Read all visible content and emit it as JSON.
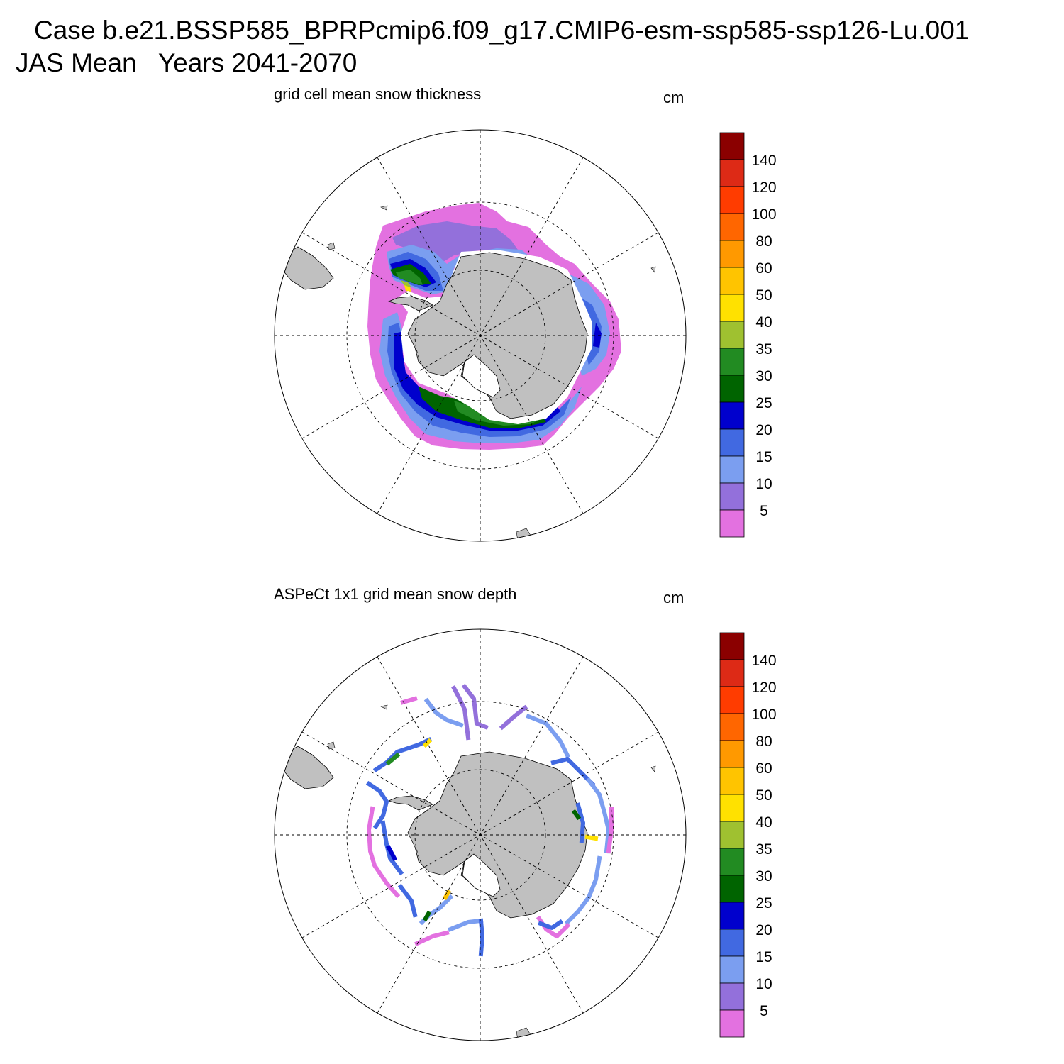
{
  "header": {
    "case_line": "Case b.e21.BSSP585_BPRPcmip6.f09_g17.CMIP6-esm-ssp585-ssp126-Lu.001",
    "season_line": "JAS Mean   Years 2041-2070"
  },
  "colorbar": {
    "labels": [
      "140",
      "120",
      "100",
      "80",
      "60",
      "50",
      "40",
      "35",
      "30",
      "25",
      "20",
      "15",
      "10",
      "5"
    ],
    "colors": [
      "#8b0000",
      "#dd2a16",
      "#ff3c00",
      "#ff6600",
      "#ff9900",
      "#ffc400",
      "#ffe100",
      "#9fc130",
      "#228b22",
      "#006400",
      "#0000cd",
      "#4169e1",
      "#7b9ef0",
      "#9370db",
      "#e371e0"
    ]
  },
  "colors": {
    "land": "#c0c0c0",
    "gridline": "#000000"
  },
  "panels": [
    {
      "title": "grid cell mean snow thickness",
      "units": "cm",
      "field": "model"
    },
    {
      "title": "ASPeCt 1x1 grid mean snow depth",
      "units": "cm",
      "field": "observations"
    }
  ]
}
